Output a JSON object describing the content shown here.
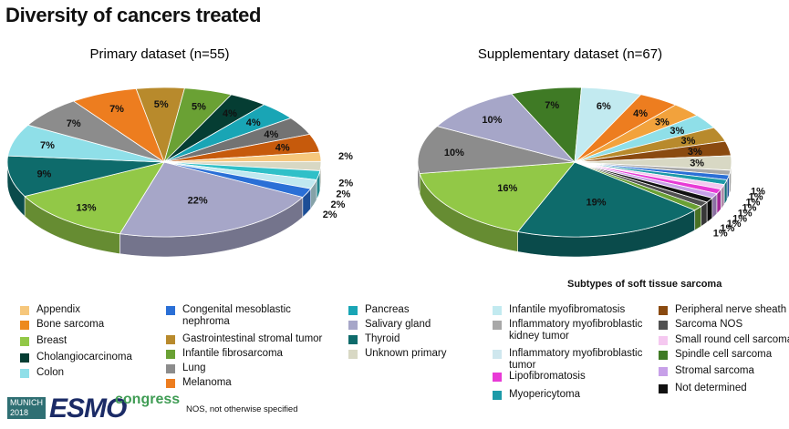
{
  "title": "Diversity of cancers treated",
  "chart_data": [
    {
      "type": "pie",
      "title": "Primary dataset (n=55)",
      "slices": [
        {
          "label": "Salivary gland",
          "value": 22,
          "color": "#a6a6c8"
        },
        {
          "label": "Breast",
          "value": 13,
          "color": "#92c847"
        },
        {
          "label": "Thyroid",
          "value": 9,
          "color": "#0e6b6b"
        },
        {
          "label": "Colon",
          "value": 7,
          "color": "#8fdfe8"
        },
        {
          "label": "Lung",
          "value": 7,
          "color": "#8c8c8c"
        },
        {
          "label": "Melanoma",
          "value": 7,
          "color": "#ed7d1f"
        },
        {
          "label": "Gastrointestinal stromal tumor",
          "value": 5,
          "color": "#b88a2c"
        },
        {
          "label": "Infantile fibrosarcoma",
          "value": 5,
          "color": "#6aa134"
        },
        {
          "label": "Cholangiocarcinoma",
          "value": 4,
          "color": "#053d33"
        },
        {
          "label": "Pancreas",
          "value": 4,
          "color": "#19a5b5"
        },
        {
          "label": "Lung",
          "value": 4,
          "color": "#737373"
        },
        {
          "label": "Bone sarcoma",
          "value": 4,
          "color": "#c65a0c"
        },
        {
          "label": "Appendix",
          "value": 2,
          "color": "#f6c77c"
        },
        {
          "label": "Unknown primary",
          "value": 2,
          "color": "#d8d8c4"
        },
        {
          "label": "Pancreas",
          "value": 2,
          "color": "#2fc0c8"
        },
        {
          "label": "Colon",
          "value": 2,
          "color": "#c0e8f0"
        },
        {
          "label": "Congenital mesoblastic nephroma",
          "value": 2,
          "color": "#2a6fd6"
        }
      ],
      "labels": [
        "22%",
        "13%",
        "9%",
        "7%",
        "7%",
        "7%",
        "5%",
        "5%",
        "4%",
        "4%",
        "4%",
        "4%",
        "2%",
        "2%",
        "2%",
        "2%",
        "2%"
      ]
    },
    {
      "type": "pie",
      "title": "Supplementary dataset (n=67)",
      "slices": [
        {
          "label": "Thyroid",
          "value": 19,
          "color": "#0e6b6b"
        },
        {
          "label": "Breast",
          "value": 16,
          "color": "#92c847"
        },
        {
          "label": "Lung",
          "value": 10,
          "color": "#8c8c8c"
        },
        {
          "label": "Salivary gland",
          "value": 10,
          "color": "#a6a6c8"
        },
        {
          "label": "Spindle cell sarcoma",
          "value": 7,
          "color": "#3f7a25"
        },
        {
          "label": "Infantile myofibromatosis",
          "value": 6,
          "color": "#c2eaf0"
        },
        {
          "label": "Melanoma",
          "value": 4,
          "color": "#ed7d1f"
        },
        {
          "label": "Bone sarcoma",
          "value": 3,
          "color": "#f2a23c"
        },
        {
          "label": "Colon",
          "value": 3,
          "color": "#8fdfe8"
        },
        {
          "label": "Gastrointestinal stromal tumor",
          "value": 3,
          "color": "#b88a2c"
        },
        {
          "label": "Peripheral nerve sheath",
          "value": 3,
          "color": "#8a4a10"
        },
        {
          "label": "Unknown primary",
          "value": 3,
          "color": "#d8d8c4"
        },
        {
          "label": "Inflammatory myofibroblastic kidney tumor",
          "value": 1,
          "color": "#a8a8a8"
        },
        {
          "label": "Congenital mesoblastic nephroma",
          "value": 1,
          "color": "#2a6fd6"
        },
        {
          "label": "Myopericytoma",
          "value": 1,
          "color": "#1c9aa8"
        },
        {
          "label": "Small round cell sarcoma",
          "value": 1,
          "color": "#f5c8f0"
        },
        {
          "label": "Lipofibromatosis",
          "value": 1,
          "color": "#e83ad6"
        },
        {
          "label": "Stromal sarcoma",
          "value": 1,
          "color": "#c7a0e8"
        },
        {
          "label": "Not determined",
          "value": 1,
          "color": "#111111"
        },
        {
          "label": "Sarcoma NOS",
          "value": 1,
          "color": "#505050"
        },
        {
          "label": "Infantile fibrosarcoma",
          "value": 1,
          "color": "#6aa134"
        }
      ],
      "labels": [
        "19%",
        "16%",
        "10%",
        "10%",
        "7%",
        "6%",
        "4%",
        "3%",
        "3%",
        "3%",
        "3%",
        "3%",
        "1%",
        "1%",
        "1%",
        "1%",
        "1%",
        "1%",
        "1%",
        "1%",
        "1%"
      ]
    }
  ],
  "legend_primary": [
    {
      "label": "Appendix",
      "color": "#f6c77c"
    },
    {
      "label": "Bone sarcoma",
      "color": "#ed8a1f"
    },
    {
      "label": "Breast",
      "color": "#92c847"
    },
    {
      "label": "Cholangiocarcinoma",
      "color": "#053d33"
    },
    {
      "label": "Colon",
      "color": "#8fdfe8"
    },
    {
      "label": "Congenital mesoblastic nephroma",
      "color": "#2a6fd6"
    },
    {
      "label": "Gastrointestinal stromal tumor",
      "color": "#b88a2c"
    },
    {
      "label": "Infantile fibrosarcoma",
      "color": "#6aa134"
    },
    {
      "label": "Lung",
      "color": "#8c8c8c"
    },
    {
      "label": "Melanoma",
      "color": "#ed7d1f"
    },
    {
      "label": "Pancreas",
      "color": "#19a5b5"
    },
    {
      "label": "Salivary gland",
      "color": "#a6a6c8"
    },
    {
      "label": "Thyroid",
      "color": "#0e6b6b"
    },
    {
      "label": "Unknown primary",
      "color": "#d8d8c4"
    }
  ],
  "sarcoma_subtitle": "Subtypes of soft tissue sarcoma",
  "legend_sarcoma": [
    {
      "label": "Infantile myofibromatosis",
      "color": "#c2eaf0"
    },
    {
      "label": "Inflammatory myofibroblastic kidney tumor",
      "color": "#a8a8a8"
    },
    {
      "label": "Inflammatory myofibroblastic tumor",
      "color": "#cfe7ee"
    },
    {
      "label": "Lipofibromatosis",
      "color": "#e83ad6"
    },
    {
      "label": "Myopericytoma",
      "color": "#1c9aa8"
    },
    {
      "label": "Peripheral nerve sheath",
      "color": "#8a4a10"
    },
    {
      "label": "Sarcoma NOS",
      "color": "#505050"
    },
    {
      "label": "Small round cell sarcoma",
      "color": "#f5c8f0"
    },
    {
      "label": "Spindle cell sarcoma",
      "color": "#3f7a25"
    },
    {
      "label": "Stromal sarcoma",
      "color": "#c7a0e8"
    },
    {
      "label": "Not determined",
      "color": "#111111"
    }
  ],
  "note": "NOS, not otherwise specified",
  "logo": {
    "city": "MUNICH",
    "year": "2018",
    "brand": "ESMO",
    "congress": "congress"
  }
}
